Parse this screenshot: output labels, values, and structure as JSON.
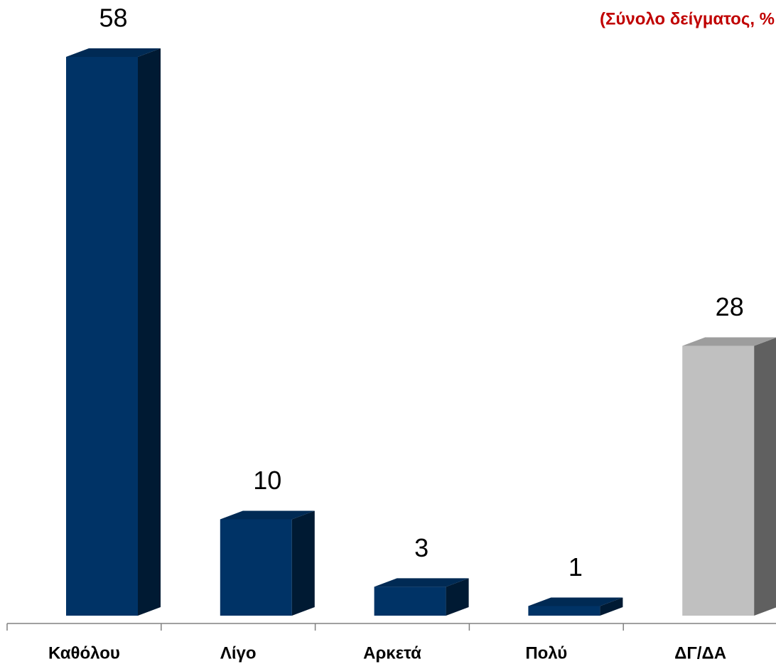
{
  "chart_data": {
    "type": "bar3d",
    "subtitle": "(Σύνολο δείγματος, %",
    "categories": [
      "Καθόλου",
      "Λίγο",
      "Αρκετά",
      "Πολύ",
      "ΔΓ/ΔΑ"
    ],
    "values": [
      58,
      10,
      3,
      1,
      28
    ],
    "colors": [
      "#003366",
      "#003366",
      "#003366",
      "#003366",
      "#c0c0c0"
    ]
  }
}
